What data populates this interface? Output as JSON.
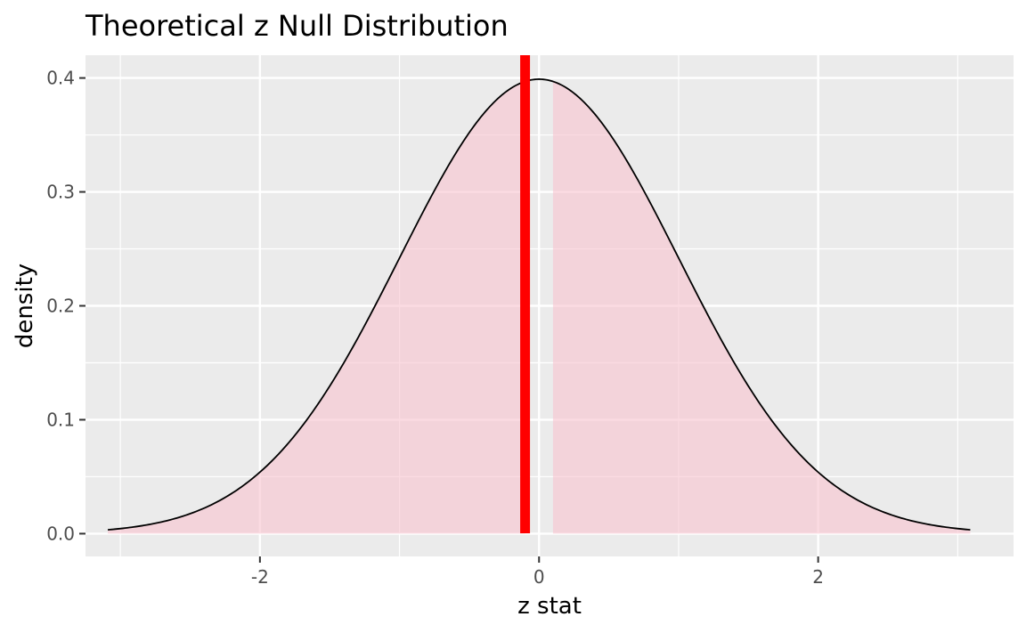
{
  "chart_data": {
    "type": "area",
    "title": "Theoretical z Null Distribution",
    "xlabel": "z stat",
    "ylabel": "density",
    "xlim": [
      -3.25,
      3.4
    ],
    "ylim": [
      -0.02,
      0.42
    ],
    "x_ticks": [
      -2,
      0,
      2
    ],
    "x_tick_labels": [
      "-2",
      "0",
      "2"
    ],
    "y_ticks": [
      0.0,
      0.1,
      0.2,
      0.3,
      0.4
    ],
    "y_tick_labels": [
      "0.0",
      "0.1",
      "0.2",
      "0.3",
      "0.4"
    ],
    "curve": {
      "distribution": "standard normal density",
      "x_range": [
        -3.09,
        3.09
      ],
      "sample_points": [
        {
          "x": -3.09,
          "y": 0.0034
        },
        {
          "x": -3.0,
          "y": 0.0044
        },
        {
          "x": -2.5,
          "y": 0.0175
        },
        {
          "x": -2.0,
          "y": 0.054
        },
        {
          "x": -1.5,
          "y": 0.1295
        },
        {
          "x": -1.0,
          "y": 0.242
        },
        {
          "x": -0.5,
          "y": 0.3521
        },
        {
          "x": 0.0,
          "y": 0.3989
        },
        {
          "x": 0.5,
          "y": 0.3521
        },
        {
          "x": 1.0,
          "y": 0.242
        },
        {
          "x": 1.5,
          "y": 0.1295
        },
        {
          "x": 2.0,
          "y": 0.054
        },
        {
          "x": 2.5,
          "y": 0.0175
        },
        {
          "x": 3.0,
          "y": 0.0044
        },
        {
          "x": 3.09,
          "y": 0.0034
        }
      ]
    },
    "shaded_regions": [
      {
        "x_start": -3.09,
        "x_end": -0.1
      },
      {
        "x_start": 0.1,
        "x_end": 3.09
      }
    ],
    "observed_stat_line": {
      "x": -0.1
    },
    "colors": {
      "panel_background": "#EBEBEB",
      "grid": "#FFFFFF",
      "shade_fill": "#F9C3CF",
      "curve": "#000000",
      "observed_line": "#FF0000"
    },
    "grid": true,
    "legend": "none"
  }
}
